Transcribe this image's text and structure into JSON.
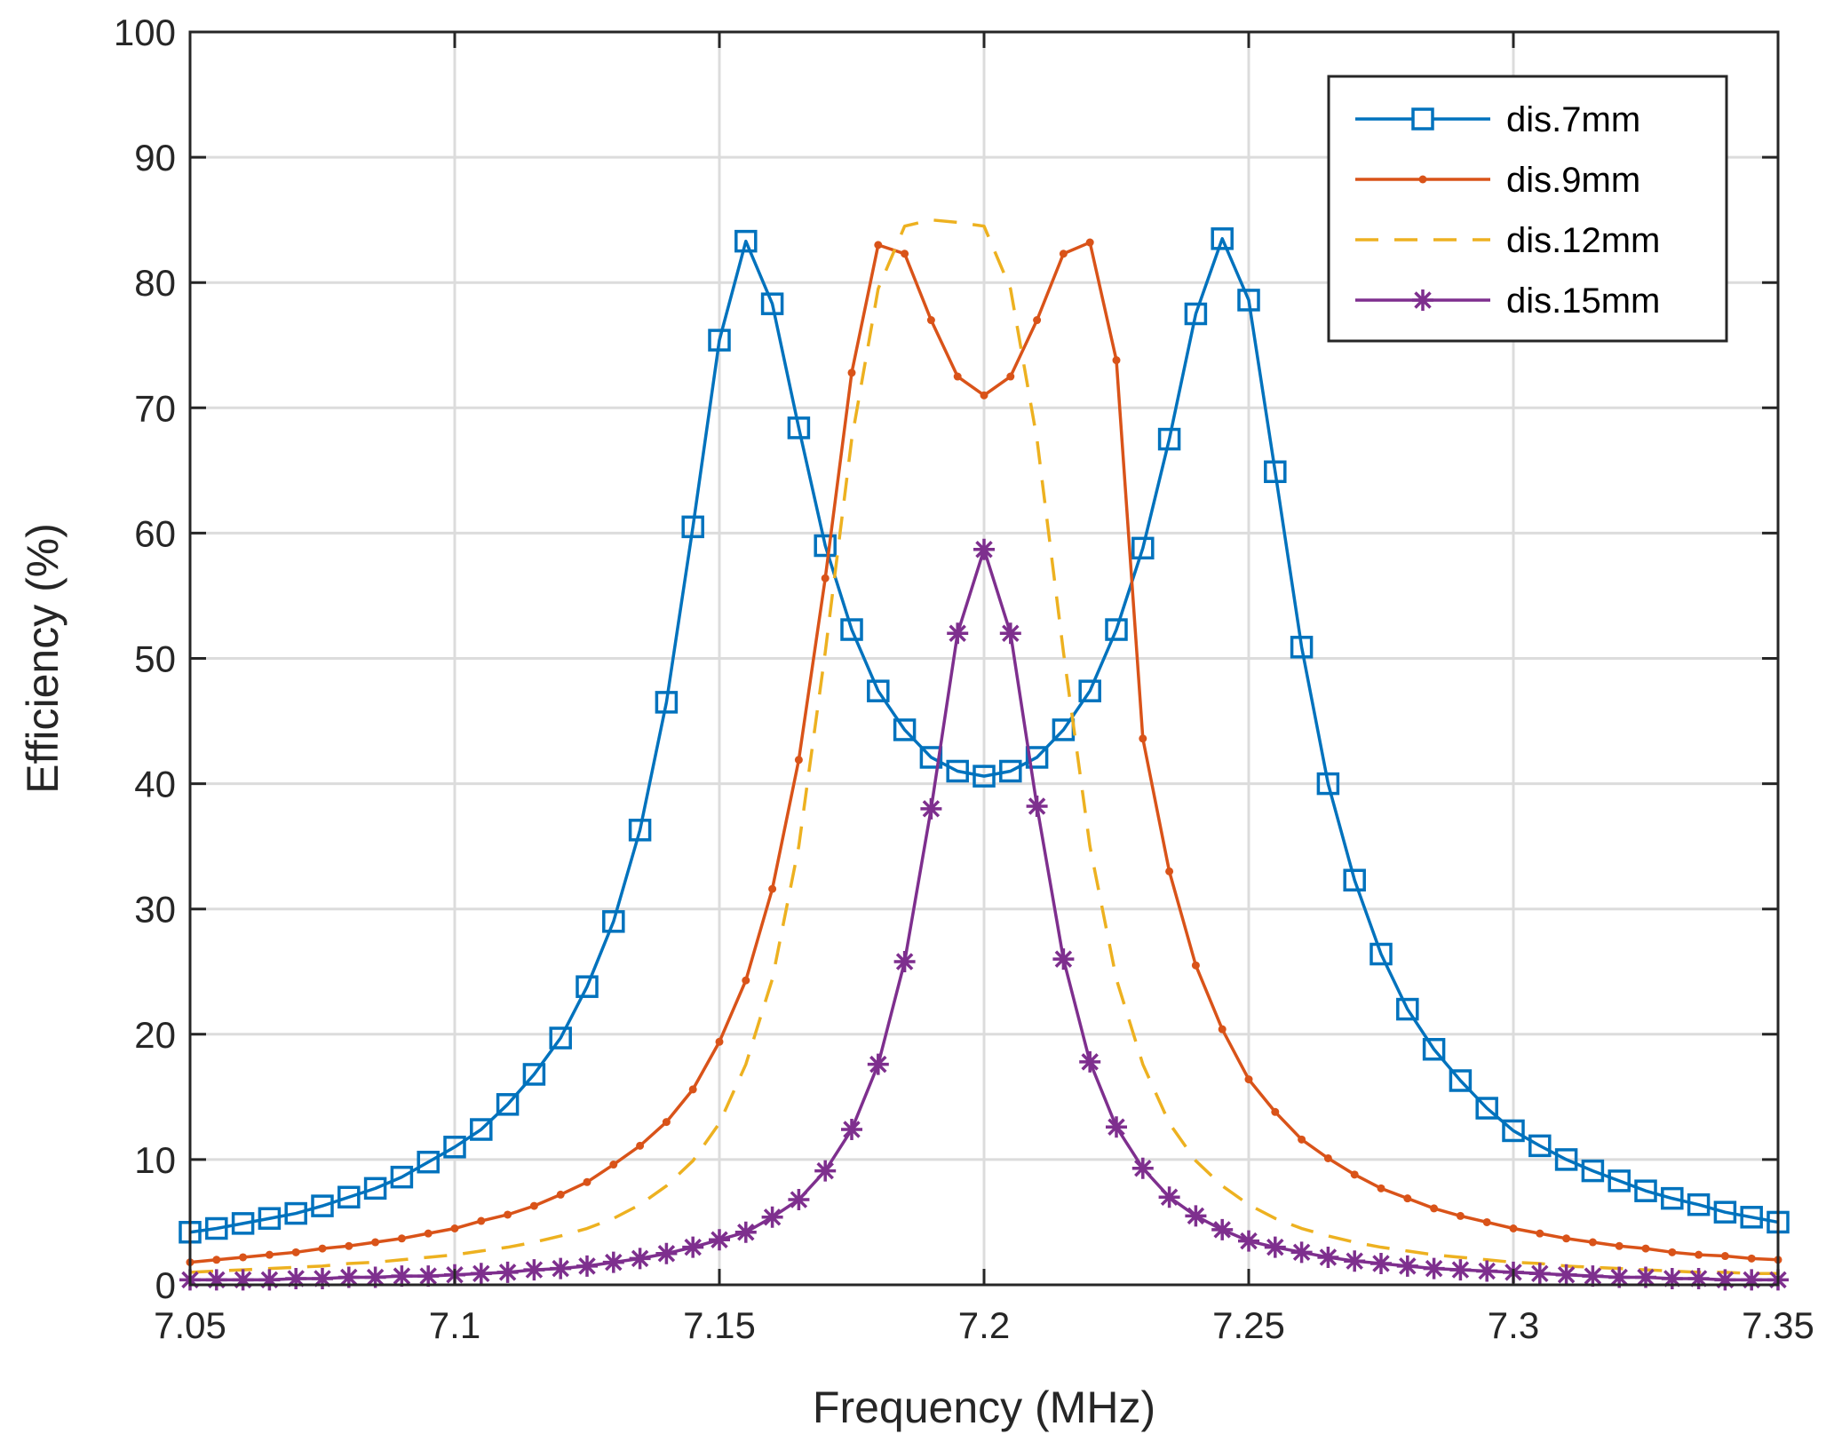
{
  "chart_data": {
    "type": "line",
    "xlabel": "Frequency (MHz)",
    "ylabel": "Efficiency (%)",
    "xlim": [
      7.05,
      7.35
    ],
    "ylim": [
      0,
      100
    ],
    "xticks": [
      7.05,
      7.1,
      7.15,
      7.2,
      7.25,
      7.3,
      7.35
    ],
    "xtick_labels": [
      "7.05",
      "7.1",
      "7.15",
      "7.2",
      "7.25",
      "7.3",
      "7.35"
    ],
    "yticks": [
      0,
      10,
      20,
      30,
      40,
      50,
      60,
      70,
      80,
      90,
      100
    ],
    "ytick_labels": [
      "0",
      "10",
      "20",
      "30",
      "40",
      "50",
      "60",
      "70",
      "80",
      "90",
      "100"
    ],
    "grid": true,
    "legend_position": "top-right",
    "series": [
      {
        "name": "dis.7mm",
        "color": "#0072BD",
        "line_style": "solid",
        "marker": "square",
        "x": [
          7.05,
          7.055,
          7.06,
          7.065,
          7.07,
          7.075,
          7.08,
          7.085,
          7.09,
          7.095,
          7.1,
          7.105,
          7.11,
          7.115,
          7.12,
          7.125,
          7.13,
          7.135,
          7.14,
          7.145,
          7.15,
          7.155,
          7.16,
          7.165,
          7.17,
          7.175,
          7.18,
          7.185,
          7.19,
          7.195,
          7.2,
          7.205,
          7.21,
          7.215,
          7.22,
          7.225,
          7.23,
          7.235,
          7.24,
          7.245,
          7.25,
          7.255,
          7.26,
          7.265,
          7.27,
          7.275,
          7.28,
          7.285,
          7.29,
          7.295,
          7.3,
          7.305,
          7.31,
          7.315,
          7.32,
          7.325,
          7.33,
          7.335,
          7.34,
          7.345,
          7.35
        ],
        "y": [
          4.2,
          4.5,
          4.9,
          5.3,
          5.7,
          6.3,
          7.0,
          7.7,
          8.6,
          9.8,
          11.0,
          12.4,
          14.4,
          16.8,
          19.7,
          23.8,
          29.0,
          36.3,
          46.5,
          60.5,
          75.4,
          83.3,
          78.3,
          68.4,
          59.0,
          52.3,
          47.4,
          44.3,
          42.1,
          41.0,
          40.6,
          41.0,
          42.1,
          44.3,
          47.4,
          52.3,
          58.8,
          67.5,
          77.5,
          83.5,
          78.6,
          64.9,
          50.9,
          40.0,
          32.3,
          26.4,
          22.0,
          18.8,
          16.3,
          14.1,
          12.3,
          11.1,
          10.0,
          9.1,
          8.3,
          7.5,
          6.9,
          6.4,
          5.8,
          5.4,
          5.0
        ]
      },
      {
        "name": "dis.9mm",
        "color": "#D95319",
        "line_style": "solid",
        "marker": "dot",
        "x": [
          7.05,
          7.055,
          7.06,
          7.065,
          7.07,
          7.075,
          7.08,
          7.085,
          7.09,
          7.095,
          7.1,
          7.105,
          7.11,
          7.115,
          7.12,
          7.125,
          7.13,
          7.135,
          7.14,
          7.145,
          7.15,
          7.155,
          7.16,
          7.165,
          7.17,
          7.175,
          7.18,
          7.185,
          7.19,
          7.195,
          7.2,
          7.205,
          7.21,
          7.215,
          7.22,
          7.225,
          7.23,
          7.235,
          7.24,
          7.245,
          7.25,
          7.255,
          7.26,
          7.265,
          7.27,
          7.275,
          7.28,
          7.285,
          7.29,
          7.295,
          7.3,
          7.305,
          7.31,
          7.315,
          7.32,
          7.325,
          7.33,
          7.335,
          7.34,
          7.345,
          7.35
        ],
        "y": [
          1.8,
          2.0,
          2.2,
          2.4,
          2.6,
          2.9,
          3.1,
          3.4,
          3.7,
          4.1,
          4.5,
          5.1,
          5.6,
          6.3,
          7.2,
          8.2,
          9.6,
          11.1,
          13.0,
          15.6,
          19.4,
          24.3,
          31.6,
          41.9,
          56.4,
          72.8,
          83.0,
          82.3,
          77.0,
          72.5,
          71.0,
          72.5,
          77.0,
          82.3,
          83.2,
          73.8,
          43.6,
          33.0,
          25.5,
          20.4,
          16.4,
          13.8,
          11.6,
          10.1,
          8.8,
          7.7,
          6.9,
          6.1,
          5.5,
          5.0,
          4.5,
          4.1,
          3.7,
          3.4,
          3.1,
          2.9,
          2.6,
          2.4,
          2.3,
          2.1,
          2.0
        ]
      },
      {
        "name": "dis.12mm",
        "color": "#EDB120",
        "line_style": "dashed",
        "marker": "none",
        "x": [
          7.05,
          7.055,
          7.06,
          7.065,
          7.07,
          7.075,
          7.08,
          7.085,
          7.09,
          7.095,
          7.1,
          7.105,
          7.11,
          7.115,
          7.12,
          7.125,
          7.13,
          7.135,
          7.14,
          7.145,
          7.15,
          7.155,
          7.16,
          7.165,
          7.17,
          7.175,
          7.18,
          7.185,
          7.19,
          7.195,
          7.2,
          7.205,
          7.21,
          7.215,
          7.22,
          7.225,
          7.23,
          7.235,
          7.24,
          7.245,
          7.25,
          7.255,
          7.26,
          7.265,
          7.27,
          7.275,
          7.28,
          7.285,
          7.29,
          7.295,
          7.3,
          7.305,
          7.31,
          7.315,
          7.32,
          7.325,
          7.33,
          7.335,
          7.34,
          7.345,
          7.35
        ],
        "y": [
          1.0,
          1.1,
          1.2,
          1.3,
          1.4,
          1.5,
          1.7,
          1.8,
          2.0,
          2.2,
          2.4,
          2.7,
          3.0,
          3.4,
          3.9,
          4.5,
          5.3,
          6.4,
          7.9,
          9.9,
          12.9,
          17.6,
          24.4,
          35.0,
          50.5,
          67.5,
          79.5,
          84.5,
          85.0,
          84.8,
          84.5,
          79.5,
          67.5,
          50.5,
          35.0,
          24.4,
          17.6,
          12.9,
          9.9,
          7.9,
          6.4,
          5.3,
          4.5,
          3.9,
          3.4,
          3.0,
          2.7,
          2.4,
          2.2,
          2.0,
          1.8,
          1.7,
          1.5,
          1.4,
          1.3,
          1.2,
          1.1,
          1.0,
          1.0,
          0.9,
          0.9
        ]
      },
      {
        "name": "dis.15mm",
        "color": "#7E2F8E",
        "line_style": "solid",
        "marker": "asterisk",
        "x": [
          7.05,
          7.055,
          7.06,
          7.065,
          7.07,
          7.075,
          7.08,
          7.085,
          7.09,
          7.095,
          7.1,
          7.105,
          7.11,
          7.115,
          7.12,
          7.125,
          7.13,
          7.135,
          7.14,
          7.145,
          7.15,
          7.155,
          7.16,
          7.165,
          7.17,
          7.175,
          7.18,
          7.185,
          7.19,
          7.195,
          7.2,
          7.205,
          7.21,
          7.215,
          7.22,
          7.225,
          7.23,
          7.235,
          7.24,
          7.245,
          7.25,
          7.255,
          7.26,
          7.265,
          7.27,
          7.275,
          7.28,
          7.285,
          7.29,
          7.295,
          7.3,
          7.305,
          7.31,
          7.315,
          7.32,
          7.325,
          7.33,
          7.335,
          7.34,
          7.345,
          7.35
        ],
        "y": [
          0.4,
          0.4,
          0.4,
          0.4,
          0.5,
          0.5,
          0.6,
          0.6,
          0.7,
          0.7,
          0.8,
          0.9,
          1.0,
          1.2,
          1.3,
          1.5,
          1.8,
          2.1,
          2.5,
          3.0,
          3.6,
          4.2,
          5.4,
          6.8,
          9.1,
          12.4,
          17.6,
          25.8,
          38.0,
          52.0,
          58.7,
          52.0,
          38.2,
          26.0,
          17.8,
          12.6,
          9.3,
          7.0,
          5.5,
          4.4,
          3.5,
          3.0,
          2.6,
          2.2,
          1.9,
          1.7,
          1.5,
          1.3,
          1.2,
          1.1,
          1.0,
          0.9,
          0.8,
          0.7,
          0.6,
          0.6,
          0.5,
          0.5,
          0.4,
          0.4,
          0.4
        ]
      }
    ]
  }
}
